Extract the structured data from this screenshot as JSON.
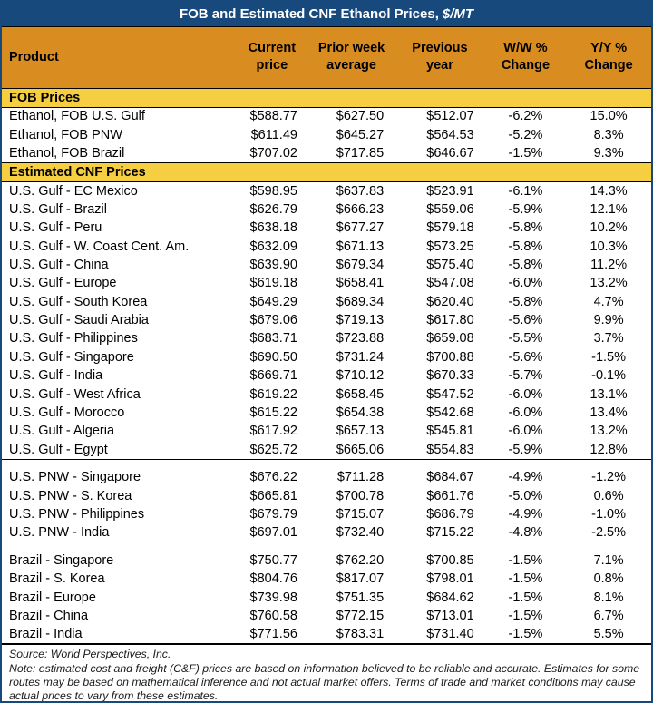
{
  "title": {
    "text": "FOB and Estimated CNF Ethanol Prices,",
    "unit": "$/MT"
  },
  "colors": {
    "navy": "#17497D",
    "orange": "#D98C1F",
    "gold": "#F6CE41"
  },
  "columns": [
    {
      "key": "product",
      "label": "Product"
    },
    {
      "key": "current",
      "label": "Current\nprice"
    },
    {
      "key": "prior",
      "label": "Prior week\naverage"
    },
    {
      "key": "previous",
      "label": "Previous\nyear"
    },
    {
      "key": "ww",
      "label": "W/W %\nChange"
    },
    {
      "key": "yy",
      "label": "Y/Y %\nChange"
    }
  ],
  "sections": [
    {
      "header": "FOB Prices",
      "groups": [
        {
          "rows": [
            {
              "product": "Ethanol, FOB U.S. Gulf",
              "current": "$588.77",
              "prior": "$627.50",
              "previous": "$512.07",
              "ww": "-6.2%",
              "yy": "15.0%"
            },
            {
              "product": "Ethanol, FOB PNW",
              "current": "$611.49",
              "prior": "$645.27",
              "previous": "$564.53",
              "ww": "-5.2%",
              "yy": "8.3%"
            },
            {
              "product": "Ethanol, FOB Brazil",
              "current": "$707.02",
              "prior": "$717.85",
              "previous": "$646.67",
              "ww": "-1.5%",
              "yy": "9.3%"
            }
          ]
        }
      ]
    },
    {
      "header": "Estimated CNF Prices",
      "groups": [
        {
          "rows": [
            {
              "product": "U.S. Gulf - EC Mexico",
              "current": "$598.95",
              "prior": "$637.83",
              "previous": "$523.91",
              "ww": "-6.1%",
              "yy": "14.3%"
            },
            {
              "product": "U.S. Gulf - Brazil",
              "current": "$626.79",
              "prior": "$666.23",
              "previous": "$559.06",
              "ww": "-5.9%",
              "yy": "12.1%"
            },
            {
              "product": "U.S. Gulf - Peru",
              "current": "$638.18",
              "prior": "$677.27",
              "previous": "$579.18",
              "ww": "-5.8%",
              "yy": "10.2%"
            },
            {
              "product": "U.S. Gulf - W. Coast Cent. Am.",
              "current": "$632.09",
              "prior": "$671.13",
              "previous": "$573.25",
              "ww": "-5.8%",
              "yy": "10.3%"
            },
            {
              "product": "U.S. Gulf - China",
              "current": "$639.90",
              "prior": "$679.34",
              "previous": "$575.40",
              "ww": "-5.8%",
              "yy": "11.2%"
            },
            {
              "product": "U.S. Gulf - Europe",
              "current": "$619.18",
              "prior": "$658.41",
              "previous": "$547.08",
              "ww": "-6.0%",
              "yy": "13.2%"
            },
            {
              "product": "U.S. Gulf - South Korea",
              "current": "$649.29",
              "prior": "$689.34",
              "previous": "$620.40",
              "ww": "-5.8%",
              "yy": "4.7%"
            },
            {
              "product": "U.S. Gulf - Saudi Arabia",
              "current": "$679.06",
              "prior": "$719.13",
              "previous": "$617.80",
              "ww": "-5.6%",
              "yy": "9.9%"
            },
            {
              "product": "U.S. Gulf - Philippines",
              "current": "$683.71",
              "prior": "$723.88",
              "previous": "$659.08",
              "ww": "-5.5%",
              "yy": "3.7%"
            },
            {
              "product": "U.S. Gulf - Singapore",
              "current": "$690.50",
              "prior": "$731.24",
              "previous": "$700.88",
              "ww": "-5.6%",
              "yy": "-1.5%"
            },
            {
              "product": "U.S. Gulf - India",
              "current": "$669.71",
              "prior": "$710.12",
              "previous": "$670.33",
              "ww": "-5.7%",
              "yy": "-0.1%"
            },
            {
              "product": "U.S. Gulf - West Africa",
              "current": "$619.22",
              "prior": "$658.45",
              "previous": "$547.52",
              "ww": "-6.0%",
              "yy": "13.1%"
            },
            {
              "product": "U.S. Gulf - Morocco",
              "current": "$615.22",
              "prior": "$654.38",
              "previous": "$542.68",
              "ww": "-6.0%",
              "yy": "13.4%"
            },
            {
              "product": "U.S. Gulf - Algeria",
              "current": "$617.92",
              "prior": "$657.13",
              "previous": "$545.81",
              "ww": "-6.0%",
              "yy": "13.2%"
            },
            {
              "product": "U.S. Gulf - Egypt",
              "current": "$625.72",
              "prior": "$665.06",
              "previous": "$554.83",
              "ww": "-5.9%",
              "yy": "12.8%"
            }
          ]
        },
        {
          "rows": [
            {
              "product": "U.S. PNW - Singapore",
              "current": "$676.22",
              "prior": "$711.28",
              "previous": "$684.67",
              "ww": "-4.9%",
              "yy": "-1.2%"
            },
            {
              "product": "U.S. PNW - S. Korea",
              "current": "$665.81",
              "prior": "$700.78",
              "previous": "$661.76",
              "ww": "-5.0%",
              "yy": "0.6%"
            },
            {
              "product": "U.S. PNW - Philippines",
              "current": "$679.79",
              "prior": "$715.07",
              "previous": "$686.79",
              "ww": "-4.9%",
              "yy": "-1.0%"
            },
            {
              "product": "U.S. PNW - India",
              "current": "$697.01",
              "prior": "$732.40",
              "previous": "$715.22",
              "ww": "-4.8%",
              "yy": "-2.5%"
            }
          ]
        },
        {
          "rows": [
            {
              "product": "Brazil - Singapore",
              "current": "$750.77",
              "prior": "$762.20",
              "previous": "$700.85",
              "ww": "-1.5%",
              "yy": "7.1%"
            },
            {
              "product": "Brazil - S. Korea",
              "current": "$804.76",
              "prior": "$817.07",
              "previous": "$798.01",
              "ww": "-1.5%",
              "yy": "0.8%"
            },
            {
              "product": "Brazil - Europe",
              "current": "$739.98",
              "prior": "$751.35",
              "previous": "$684.62",
              "ww": "-1.5%",
              "yy": "8.1%"
            },
            {
              "product": "Brazil - China",
              "current": "$760.58",
              "prior": "$772.15",
              "previous": "$713.01",
              "ww": "-1.5%",
              "yy": "6.7%"
            },
            {
              "product": "Brazil - India",
              "current": "$771.56",
              "prior": "$783.31",
              "previous": "$731.40",
              "ww": "-1.5%",
              "yy": "5.5%"
            }
          ]
        }
      ]
    }
  ],
  "footnotes": {
    "source": "Source: World Perspectives, Inc.",
    "note": "Note: estimated cost and freight (C&F) prices are based on information believed to be reliable and accurate. Estimates for some routes may be based on mathematical inference and not actual market offers. Terms of trade and market conditions may cause actual prices to vary from these estimates."
  }
}
